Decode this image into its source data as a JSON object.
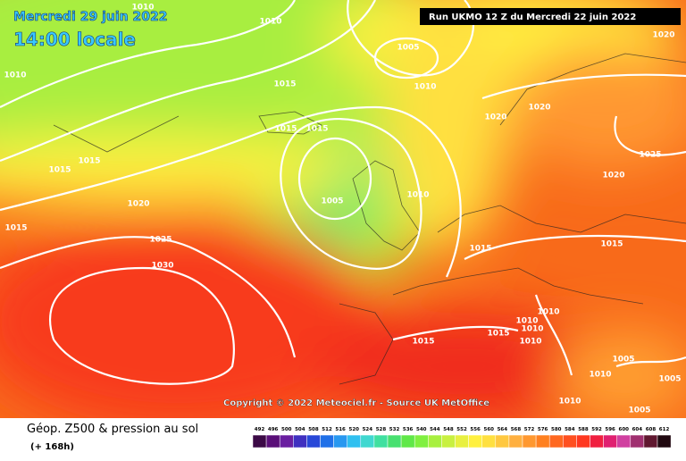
{
  "header": {
    "date": "Mercredi 29 juin 2022",
    "time": "14:00 locale",
    "run": "Run UKMO 12 Z du Mercredi 22 juin 2022",
    "copyright": "Copyright © 2022 Meteociel.fr - Source UK MetOffice"
  },
  "legend": {
    "title": "Géop. Z500 & pression au sol",
    "lead": "(+ 168h)",
    "values": [
      492,
      496,
      500,
      504,
      508,
      512,
      516,
      520,
      524,
      528,
      532,
      536,
      540,
      544,
      548,
      552,
      556,
      560,
      564,
      568,
      572,
      576,
      580,
      584,
      588,
      592,
      596,
      600,
      604,
      608,
      612
    ],
    "colors": [
      "#3c0a46",
      "#5a0f78",
      "#6a1fa0",
      "#4030c0",
      "#2848d8",
      "#2070e8",
      "#2898f0",
      "#30c0f0",
      "#40d8d0",
      "#40e0a0",
      "#48e070",
      "#60e848",
      "#80f040",
      "#a8f040",
      "#c8f040",
      "#e8f040",
      "#fff040",
      "#ffe040",
      "#ffc840",
      "#ffb040",
      "#ff9830",
      "#ff8020",
      "#ff6820",
      "#ff5020",
      "#ff3820",
      "#f02040",
      "#e02070",
      "#d040a0",
      "#a03070",
      "#601830",
      "#200810"
    ]
  },
  "isobars": {
    "labels": [
      1010,
      1010,
      1010,
      1005,
      1010,
      1015,
      1015,
      1015,
      1015,
      1015,
      1020,
      1025,
      1030,
      1015,
      1005,
      1010,
      1020,
      1020,
      1020,
      1025,
      1020,
      1015,
      1015,
      1010,
      1010,
      1010,
      1015,
      1015,
      1010,
      1005,
      1005,
      1010,
      1010,
      1005
    ]
  }
}
